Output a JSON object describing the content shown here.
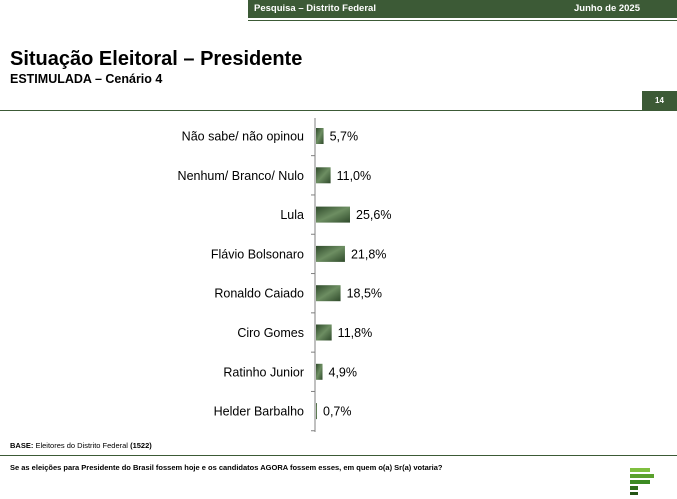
{
  "header": {
    "left_text": "Pesquisa – Distrito Federal",
    "right_text": "Junho de 2025"
  },
  "title": "Situação Eleitoral – Presidente",
  "subtitle": "ESTIMULADA – Cenário 4",
  "page_number": "14",
  "footer": {
    "base_label": "BASE:",
    "base_text": "Eleitores do Distrito Federal",
    "base_count": "(1522)",
    "question": "Se as eleições para Presidente do Brasil fossem hoje e os candidatos AGORA fossem esses, em quem o(a) Sr(a) votaria?"
  },
  "colors": {
    "accent": "#3c5a36",
    "bar_dark": "#2f4a2b",
    "bar_light": "#6d8e62"
  },
  "chart_data": {
    "type": "bar",
    "orientation": "horizontal",
    "categories": [
      "Não sabe/ não opinou",
      "Nenhum/ Branco/ Nulo",
      "Lula",
      "Flávio Bolsonaro",
      "Ronaldo Caiado",
      "Ciro Gomes",
      "Ratinho Junior",
      "Helder Barbalho"
    ],
    "values": [
      5.7,
      11.0,
      25.6,
      21.8,
      18.5,
      11.8,
      4.9,
      0.7
    ],
    "value_labels": [
      "5,7%",
      "11,0%",
      "25,6%",
      "21,8%",
      "18,5%",
      "11,8%",
      "4,9%",
      "0,7%"
    ],
    "title": "",
    "xlabel": "",
    "ylabel": "",
    "grid": false
  }
}
